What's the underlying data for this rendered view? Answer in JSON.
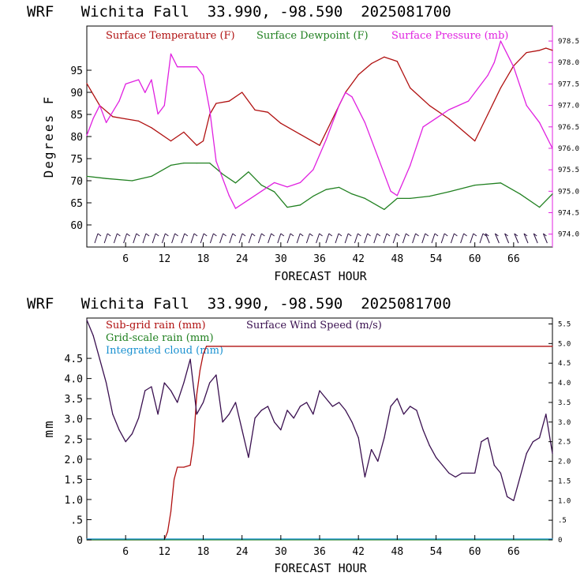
{
  "chart_data": [
    {
      "type": "line",
      "title": "WRF   Wichita Fall  33.990, -98.590  2025081700",
      "xlabel": "FORECAST HOUR",
      "ylabel": "Degrees F",
      "xlim": [
        0,
        72
      ],
      "ylim": [
        55,
        105
      ],
      "y2lim": [
        973.7,
        978.85
      ],
      "xticks": [
        "6",
        "12",
        "18",
        "24",
        "30",
        "36",
        "42",
        "48",
        "54",
        "60",
        "66"
      ],
      "yticks": [
        "60",
        "65",
        "70",
        "75",
        "80",
        "85",
        "90",
        "95"
      ],
      "y2ticks": [
        "974.0",
        "974.5",
        "975.0",
        "975.5",
        "976.0",
        "976.5",
        "977.0",
        "977.5",
        "978.0",
        "978.5"
      ],
      "legend_placement": "top",
      "grid": false,
      "series": [
        {
          "name": "Surface Temperature (F)",
          "color": "#b01010",
          "axis": "left",
          "x": [
            0,
            2,
            4,
            6,
            8,
            10,
            13,
            15,
            17,
            18,
            19,
            20,
            22,
            24,
            26,
            28,
            30,
            33,
            36,
            38,
            40,
            42,
            44,
            46,
            48,
            50,
            53,
            56,
            60,
            62,
            64,
            66,
            68,
            70,
            71,
            72
          ],
          "values": [
            92,
            87,
            84.5,
            84,
            83.5,
            82,
            79,
            81,
            78,
            79,
            85,
            87.5,
            88,
            90,
            86,
            85.5,
            83,
            80.5,
            78,
            84,
            90,
            94,
            96.5,
            98,
            97,
            91,
            87,
            84,
            79,
            85,
            91,
            96,
            99,
            99.5,
            100,
            99.5
          ]
        },
        {
          "name": "Surface Dewpoint (F)",
          "color": "#208020",
          "axis": "left",
          "x": [
            0,
            3,
            7,
            10,
            13,
            15,
            17,
            19,
            21,
            23,
            25,
            27,
            29,
            31,
            33,
            35,
            37,
            39,
            41,
            43,
            46,
            48,
            50,
            53,
            56,
            60,
            64,
            67,
            70,
            72
          ],
          "values": [
            71,
            70.5,
            70,
            71,
            73.5,
            74,
            74,
            74,
            71.5,
            69.5,
            72,
            69,
            67.5,
            64,
            64.5,
            66.5,
            68,
            68.5,
            67,
            66,
            63.5,
            66,
            66,
            66.5,
            67.5,
            69,
            69.5,
            67,
            64,
            67
          ]
        },
        {
          "name": "Surface Pressure (mb)",
          "color": "#e020e0",
          "axis": "right",
          "x": [
            0,
            1,
            2,
            3,
            5,
            6,
            8,
            9,
            10,
            11,
            12,
            13,
            14,
            15,
            16,
            17,
            18,
            19,
            20,
            21,
            22,
            23,
            25,
            27,
            29,
            31,
            33,
            35,
            37,
            39,
            40,
            41,
            43,
            45,
            47,
            48,
            50,
            52,
            54,
            56,
            59,
            62,
            63,
            64,
            66,
            68,
            70,
            72
          ],
          "values": [
            976.3,
            976.7,
            977.0,
            976.6,
            977.1,
            977.5,
            977.6,
            977.3,
            977.6,
            976.8,
            977.0,
            978.2,
            977.9,
            977.9,
            977.9,
            977.9,
            977.7,
            976.9,
            975.7,
            975.3,
            974.9,
            974.6,
            974.8,
            975.0,
            975.2,
            975.1,
            975.2,
            975.5,
            976.2,
            977.0,
            977.3,
            977.2,
            976.6,
            975.8,
            975.0,
            974.9,
            975.6,
            976.5,
            976.7,
            976.9,
            977.1,
            977.7,
            978.0,
            978.5,
            977.9,
            977.0,
            976.6,
            976.0
          ]
        }
      ]
    },
    {
      "type": "line",
      "title": "WRF   Wichita Fall  33.990, -98.590  2025081700",
      "xlabel": "FORECAST HOUR",
      "ylabel": "mm",
      "xlim": [
        0,
        72
      ],
      "ylim": [
        0,
        5.5
      ],
      "y2lim": [
        0,
        5.65
      ],
      "xticks": [
        "6",
        "12",
        "18",
        "24",
        "30",
        "36",
        "42",
        "48",
        "54",
        "60",
        "66"
      ],
      "yticks": [
        "0",
        ".5",
        "1.0",
        "1.5",
        "2.0",
        "2.5",
        "3.0",
        "3.5",
        "4.0",
        "4.5"
      ],
      "y2ticks": [
        "0",
        ".5",
        "1.0",
        "1.5",
        "2.0",
        "2.5",
        "3.0",
        "3.5",
        "4.0",
        "4.5",
        "5.0",
        "5.5"
      ],
      "legend_placement": "top",
      "grid": false,
      "series": [
        {
          "name": "Sub-grid rain (mm)",
          "color": "#b01010",
          "axis": "left",
          "x": [
            0,
            12,
            12.5,
            13,
            13.5,
            14,
            15,
            16,
            16.5,
            17,
            17.5,
            18,
            18.5,
            72
          ],
          "values": [
            0,
            0,
            0.2,
            0.7,
            1.5,
            1.8,
            1.8,
            1.85,
            2.4,
            3.6,
            4.2,
            4.6,
            4.8,
            4.8
          ]
        },
        {
          "name": "Grid-scale rain (mm)",
          "color": "#208020",
          "axis": "left",
          "x": [
            0,
            72
          ],
          "values": [
            0,
            0
          ]
        },
        {
          "name": "Integrated cloud (mm)",
          "color": "#1890d0",
          "axis": "left",
          "x": [
            0,
            72
          ],
          "values": [
            0.02,
            0.02
          ]
        },
        {
          "name": "Surface Wind Speed (m/s)",
          "color": "#3a1050",
          "axis": "right",
          "x": [
            0,
            1,
            2,
            3,
            4,
            5,
            6,
            7,
            8,
            9,
            10,
            11,
            12,
            13,
            14,
            15,
            16,
            17,
            18,
            19,
            20,
            21,
            22,
            23,
            24,
            25,
            26,
            27,
            28,
            29,
            30,
            31,
            32,
            33,
            34,
            35,
            36,
            37,
            38,
            39,
            40,
            41,
            42,
            43,
            44,
            45,
            46,
            47,
            48,
            49,
            50,
            51,
            52,
            53,
            54,
            55,
            56,
            57,
            58,
            59,
            60,
            61,
            62,
            63,
            64,
            65,
            66,
            67,
            68,
            69,
            70,
            71,
            72
          ],
          "values": [
            5.6,
            5.2,
            4.6,
            4.0,
            3.2,
            2.8,
            2.5,
            2.7,
            3.1,
            3.8,
            3.9,
            3.2,
            4.0,
            3.8,
            3.5,
            4.0,
            4.6,
            3.2,
            3.5,
            4.0,
            4.2,
            3.0,
            3.2,
            3.5,
            2.8,
            2.1,
            3.1,
            3.3,
            3.4,
            3.0,
            2.8,
            3.3,
            3.1,
            3.4,
            3.5,
            3.2,
            3.8,
            3.6,
            3.4,
            3.5,
            3.3,
            3.0,
            2.6,
            1.6,
            2.3,
            2.0,
            2.6,
            3.4,
            3.6,
            3.2,
            3.4,
            3.3,
            2.8,
            2.4,
            2.1,
            1.9,
            1.7,
            1.6,
            1.7,
            1.7,
            1.7,
            2.5,
            2.6,
            1.9,
            1.7,
            1.1,
            1.0,
            1.6,
            2.2,
            2.5,
            2.6,
            3.2,
            2.2
          ]
        }
      ]
    }
  ]
}
